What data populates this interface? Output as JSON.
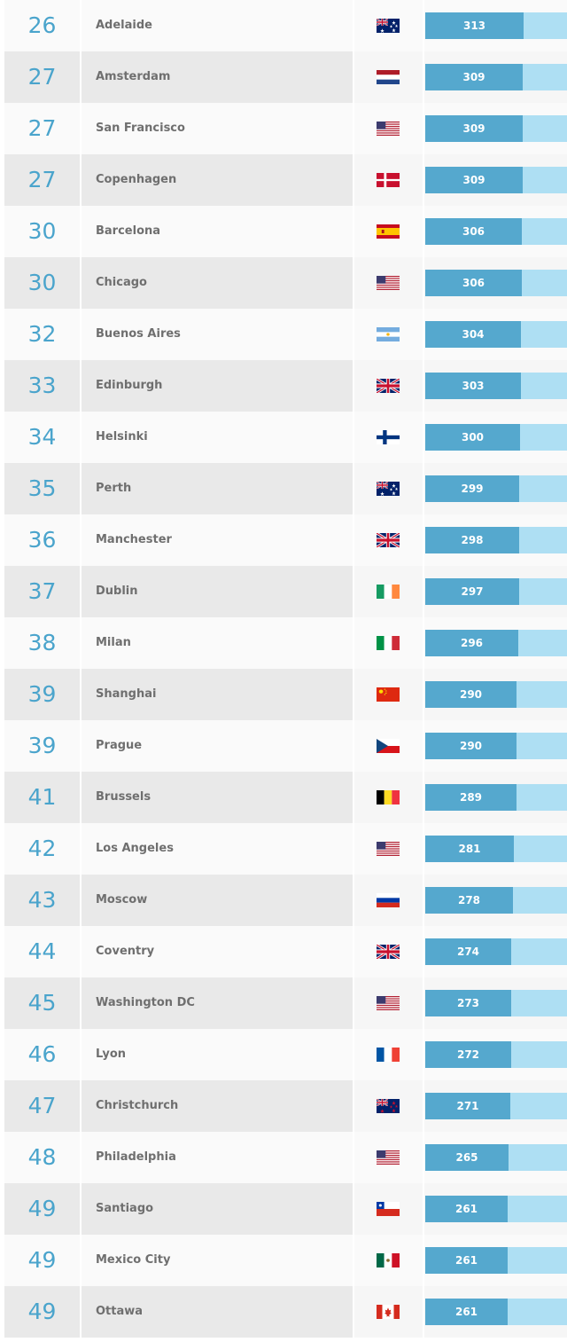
{
  "colors": {
    "rank": "#4aa4cc",
    "bar_fill": "#55a8ce",
    "bar_track": "#aedff3",
    "city_text": "#6f6f6f"
  },
  "bar_scale_max": 450,
  "rows": [
    {
      "rank": "26",
      "city": "Adelaide",
      "flag": "australia-flag-icon",
      "score": 313
    },
    {
      "rank": "27",
      "city": "Amsterdam",
      "flag": "netherlands-flag-icon",
      "score": 309
    },
    {
      "rank": "27",
      "city": "San Francisco",
      "flag": "usa-flag-icon",
      "score": 309
    },
    {
      "rank": "27",
      "city": "Copenhagen",
      "flag": "denmark-flag-icon",
      "score": 309
    },
    {
      "rank": "30",
      "city": "Barcelona",
      "flag": "spain-flag-icon",
      "score": 306
    },
    {
      "rank": "30",
      "city": "Chicago",
      "flag": "usa-flag-icon",
      "score": 306
    },
    {
      "rank": "32",
      "city": "Buenos Aires",
      "flag": "argentina-flag-icon",
      "score": 304
    },
    {
      "rank": "33",
      "city": "Edinburgh",
      "flag": "uk-flag-icon",
      "score": 303
    },
    {
      "rank": "34",
      "city": "Helsinki",
      "flag": "finland-flag-icon",
      "score": 300
    },
    {
      "rank": "35",
      "city": "Perth",
      "flag": "australia-flag-icon",
      "score": 299
    },
    {
      "rank": "36",
      "city": "Manchester",
      "flag": "uk-flag-icon",
      "score": 298
    },
    {
      "rank": "37",
      "city": "Dublin",
      "flag": "ireland-flag-icon",
      "score": 297
    },
    {
      "rank": "38",
      "city": "Milan",
      "flag": "italy-flag-icon",
      "score": 296
    },
    {
      "rank": "39",
      "city": "Shanghai",
      "flag": "china-flag-icon",
      "score": 290
    },
    {
      "rank": "39",
      "city": "Prague",
      "flag": "czech-flag-icon",
      "score": 290
    },
    {
      "rank": "41",
      "city": "Brussels",
      "flag": "belgium-flag-icon",
      "score": 289
    },
    {
      "rank": "42",
      "city": "Los Angeles",
      "flag": "usa-flag-icon",
      "score": 281
    },
    {
      "rank": "43",
      "city": "Moscow",
      "flag": "russia-flag-icon",
      "score": 278
    },
    {
      "rank": "44",
      "city": "Coventry",
      "flag": "uk-flag-icon",
      "score": 274
    },
    {
      "rank": "45",
      "city": "Washington DC",
      "flag": "usa-flag-icon",
      "score": 273
    },
    {
      "rank": "46",
      "city": "Lyon",
      "flag": "france-flag-icon",
      "score": 272
    },
    {
      "rank": "47",
      "city": "Christchurch",
      "flag": "new-zealand-flag-icon",
      "score": 271
    },
    {
      "rank": "48",
      "city": "Philadelphia",
      "flag": "usa-flag-icon",
      "score": 265
    },
    {
      "rank": "49",
      "city": "Santiago",
      "flag": "chile-flag-icon",
      "score": 261
    },
    {
      "rank": "49",
      "city": "Mexico City",
      "flag": "mexico-flag-icon",
      "score": 261
    },
    {
      "rank": "49",
      "city": "Ottawa",
      "flag": "canada-flag-icon",
      "score": 261
    }
  ]
}
